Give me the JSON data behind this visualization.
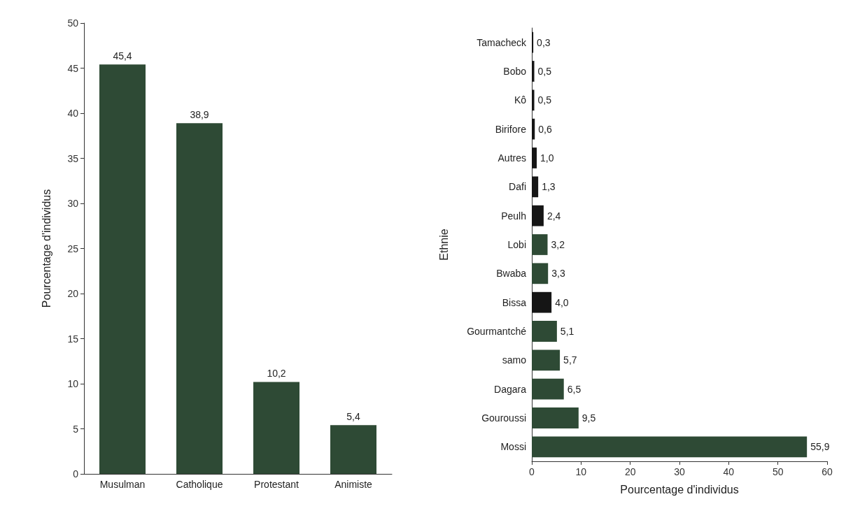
{
  "chart_data": [
    {
      "type": "bar",
      "ylabel": "Pourcentage d'individus",
      "categories": [
        "Musulman",
        "Catholique",
        "Protestant",
        "Animiste"
      ],
      "values": [
        45.4,
        38.9,
        10.2,
        5.4
      ],
      "value_labels": [
        "45,4",
        "38,9",
        "10,2",
        "5,4"
      ],
      "color": "#2e4a35",
      "ylim": [
        0,
        50
      ],
      "yticks": [
        0,
        5,
        10,
        15,
        20,
        25,
        30,
        35,
        40,
        45,
        50
      ],
      "grid": false
    },
    {
      "type": "bar",
      "orientation": "horizontal",
      "xlabel": "Pourcentage d'individus",
      "ylabel": "Ethnie",
      "categories": [
        "Tamacheck",
        "Bobo",
        "Kô",
        "Birifore",
        "Autres",
        "Dafi",
        "Peulh",
        "Lobi",
        "Bwaba",
        "Bissa",
        "Gourmantché",
        "samo",
        "Dagara",
        "Gouroussi",
        "Mossi"
      ],
      "values": [
        0.3,
        0.5,
        0.5,
        0.6,
        1.0,
        1.3,
        2.4,
        3.2,
        3.3,
        4.0,
        5.1,
        5.7,
        6.5,
        9.5,
        55.9
      ],
      "value_labels": [
        "0,3",
        "0,5",
        "0,5",
        "0,6",
        "1,0",
        "1,3",
        "2,4",
        "3,2",
        "3,3",
        "4,0",
        "5,1",
        "5,7",
        "6,5",
        "9,5",
        "55,9"
      ],
      "colors": [
        "#151515",
        "#151515",
        "#151515",
        "#151515",
        "#151515",
        "#151515",
        "#151515",
        "#2e4a35",
        "#2e4a35",
        "#151515",
        "#2e4a35",
        "#2e4a35",
        "#2e4a35",
        "#2e4a35",
        "#2e4a35"
      ],
      "xlim": [
        0,
        60
      ],
      "xticks": [
        0,
        10,
        20,
        30,
        40,
        50,
        60
      ],
      "grid": false
    }
  ]
}
